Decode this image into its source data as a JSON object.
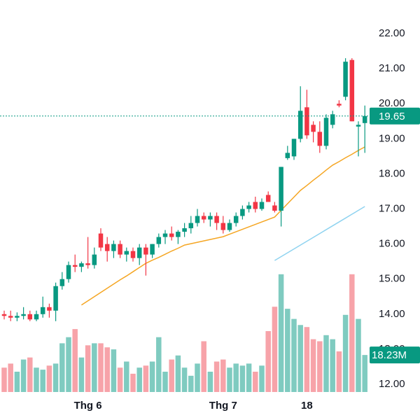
{
  "chart_data": {
    "type": "candlestick",
    "categories": [
      null,
      null,
      null,
      null,
      null,
      null,
      null,
      null,
      null,
      null,
      null,
      null,
      null,
      "Thg 6",
      null,
      null,
      null,
      null,
      null,
      null,
      null,
      null,
      null,
      null,
      null,
      null,
      null,
      null,
      null,
      null,
      null,
      null,
      null,
      null,
      "Thg 7",
      null,
      null,
      null,
      null,
      null,
      null,
      null,
      null,
      null,
      null,
      null,
      null,
      "18",
      null,
      null,
      null,
      null,
      null,
      null,
      null,
      null,
      null
    ],
    "candles": [
      {
        "open": 14.0,
        "high": 14.1,
        "low": 13.85,
        "close": 13.95
      },
      {
        "open": 13.95,
        "high": 14.1,
        "low": 13.8,
        "close": 13.9
      },
      {
        "open": 13.9,
        "high": 14.05,
        "low": 13.8,
        "close": 13.95
      },
      {
        "open": 13.95,
        "high": 14.2,
        "low": 13.85,
        "close": 14.0
      },
      {
        "open": 14.0,
        "high": 14.1,
        "low": 13.8,
        "close": 13.85
      },
      {
        "open": 13.85,
        "high": 14.1,
        "low": 13.8,
        "close": 14.0
      },
      {
        "open": 14.0,
        "high": 14.5,
        "low": 13.9,
        "close": 14.2
      },
      {
        "open": 14.2,
        "high": 14.3,
        "low": 13.9,
        "close": 14.1
      },
      {
        "open": 14.1,
        "high": 14.9,
        "low": 13.8,
        "close": 14.8
      },
      {
        "open": 14.8,
        "high": 15.2,
        "low": 14.7,
        "close": 15.0
      },
      {
        "open": 15.0,
        "high": 15.5,
        "low": 14.9,
        "close": 15.4
      },
      {
        "open": 15.4,
        "high": 15.7,
        "low": 15.2,
        "close": 15.35
      },
      {
        "open": 15.35,
        "high": 15.5,
        "low": 15.2,
        "close": 15.45
      },
      {
        "open": 15.45,
        "high": 16.2,
        "low": 15.3,
        "close": 15.4
      },
      {
        "open": 15.4,
        "high": 15.9,
        "low": 15.3,
        "close": 15.7
      },
      {
        "open": 16.3,
        "high": 16.45,
        "low": 15.8,
        "close": 15.9
      },
      {
        "open": 16.0,
        "high": 16.2,
        "low": 15.5,
        "close": 15.8
      },
      {
        "open": 15.8,
        "high": 16.1,
        "low": 15.6,
        "close": 16.0
      },
      {
        "open": 16.0,
        "high": 16.1,
        "low": 15.6,
        "close": 15.7
      },
      {
        "open": 15.7,
        "high": 15.9,
        "low": 15.5,
        "close": 15.8
      },
      {
        "open": 15.8,
        "high": 15.9,
        "low": 15.5,
        "close": 15.6
      },
      {
        "open": 15.6,
        "high": 16.0,
        "low": 15.4,
        "close": 15.9
      },
      {
        "open": 15.9,
        "high": 16.0,
        "low": 15.1,
        "close": 15.7
      },
      {
        "open": 15.7,
        "high": 16.0,
        "low": 15.6,
        "close": 16.0
      },
      {
        "open": 16.0,
        "high": 16.3,
        "low": 15.9,
        "close": 16.2
      },
      {
        "open": 16.2,
        "high": 16.4,
        "low": 16.0,
        "close": 16.3
      },
      {
        "open": 16.3,
        "high": 16.5,
        "low": 16.1,
        "close": 16.2
      },
      {
        "open": 16.2,
        "high": 16.4,
        "low": 16.0,
        "close": 16.35
      },
      {
        "open": 16.35,
        "high": 16.6,
        "low": 16.2,
        "close": 16.45
      },
      {
        "open": 16.45,
        "high": 16.8,
        "low": 16.3,
        "close": 16.6
      },
      {
        "open": 16.6,
        "high": 17.0,
        "low": 16.5,
        "close": 16.8
      },
      {
        "open": 16.8,
        "high": 16.9,
        "low": 16.6,
        "close": 16.7
      },
      {
        "open": 16.7,
        "high": 16.9,
        "low": 16.5,
        "close": 16.8
      },
      {
        "open": 16.8,
        "high": 16.9,
        "low": 16.4,
        "close": 16.6
      },
      {
        "open": 16.6,
        "high": 16.8,
        "low": 16.3,
        "close": 16.4
      },
      {
        "open": 16.4,
        "high": 16.7,
        "low": 16.35,
        "close": 16.6
      },
      {
        "open": 16.6,
        "high": 16.9,
        "low": 16.5,
        "close": 16.8
      },
      {
        "open": 16.8,
        "high": 17.1,
        "low": 16.7,
        "close": 17.0
      },
      {
        "open": 17.0,
        "high": 17.2,
        "low": 16.9,
        "close": 17.1
      },
      {
        "open": 17.2,
        "high": 17.35,
        "low": 16.9,
        "close": 17.0
      },
      {
        "open": 17.0,
        "high": 17.3,
        "low": 16.95,
        "close": 17.2
      },
      {
        "open": 17.4,
        "high": 17.5,
        "low": 17.2,
        "close": 17.2
      },
      {
        "open": 17.1,
        "high": 17.2,
        "low": 16.9,
        "close": 16.95
      },
      {
        "open": 16.95,
        "high": 18.2,
        "low": 16.5,
        "close": 18.2
      },
      {
        "open": 18.45,
        "high": 18.8,
        "low": 18.4,
        "close": 18.6
      },
      {
        "open": 18.5,
        "high": 19.0,
        "low": 18.4,
        "close": 19.0
      },
      {
        "open": 19.0,
        "high": 20.5,
        "low": 18.9,
        "close": 19.8
      },
      {
        "open": 19.9,
        "high": 20.4,
        "low": 19.0,
        "close": 19.1
      },
      {
        "open": 19.4,
        "high": 19.5,
        "low": 18.9,
        "close": 19.2
      },
      {
        "open": 19.2,
        "high": 19.5,
        "low": 18.6,
        "close": 18.8
      },
      {
        "open": 18.8,
        "high": 19.7,
        "low": 18.7,
        "close": 19.6
      },
      {
        "open": 19.4,
        "high": 19.8,
        "low": 19.3,
        "close": 19.7
      },
      {
        "open": 20.0,
        "high": 20.1,
        "low": 19.9,
        "close": 19.95
      },
      {
        "open": 20.2,
        "high": 21.3,
        "low": 20.1,
        "close": 21.2
      },
      {
        "open": 21.25,
        "high": 21.3,
        "low": 19.5,
        "close": 19.5
      },
      {
        "open": 19.35,
        "high": 19.5,
        "low": 18.5,
        "close": 19.4
      },
      {
        "open": 19.45,
        "high": 19.95,
        "low": 18.6,
        "close": 19.65
      }
    ],
    "volumes": [
      12,
      14,
      10,
      16,
      17,
      12,
      11,
      13,
      14,
      24,
      27,
      31,
      17,
      23,
      24,
      24,
      22,
      21,
      12,
      15,
      9,
      12,
      13,
      15,
      27,
      10,
      16,
      18,
      12,
      8,
      14,
      25,
      10,
      15,
      16,
      12,
      14,
      13,
      14,
      10,
      13,
      30,
      42,
      58,
      41,
      36,
      33,
      32,
      26,
      25,
      28,
      26,
      20,
      38,
      58,
      36,
      18.23
    ],
    "volume_last_label": "18.23M",
    "moving_averages": [
      {
        "color": "#f5a623",
        "values": [
          null,
          null,
          null,
          null,
          null,
          null,
          null,
          null,
          null,
          null,
          null,
          null,
          14.26,
          14.38,
          14.5,
          14.62,
          14.74,
          14.86,
          14.98,
          15.09,
          15.21,
          15.33,
          15.45,
          15.54,
          15.62,
          15.71,
          15.8,
          15.88,
          15.97,
          16.01,
          16.05,
          16.09,
          16.13,
          16.17,
          16.21,
          16.28,
          16.35,
          16.42,
          16.49,
          16.56,
          16.63,
          16.7,
          16.77,
          16.96,
          17.15,
          17.34,
          17.53,
          17.67,
          17.82,
          17.96,
          18.11,
          18.25,
          18.35,
          18.46,
          18.56,
          18.67,
          18.77
        ]
      },
      {
        "color": "#8fd3f0",
        "values": [
          null,
          null,
          null,
          null,
          null,
          null,
          null,
          null,
          null,
          null,
          null,
          null,
          null,
          null,
          null,
          null,
          null,
          null,
          null,
          null,
          null,
          null,
          null,
          null,
          null,
          null,
          null,
          null,
          null,
          null,
          null,
          null,
          null,
          null,
          null,
          null,
          null,
          null,
          null,
          null,
          null,
          null,
          15.53,
          15.64,
          15.75,
          15.86,
          15.97,
          16.08,
          16.19,
          16.3,
          16.41,
          16.52,
          16.63,
          16.74,
          16.85,
          16.96,
          17.07
        ]
      }
    ],
    "up_color": "#089981",
    "down_color": "#f23645",
    "volume_up_color": "#7fcbc0",
    "volume_down_color": "#f7a3a9",
    "ylim": [
      11.68,
      22.96
    ],
    "yticks": [
      {
        "value": 12,
        "label": "12.00"
      },
      {
        "value": 13,
        "label": "13.00"
      },
      {
        "value": 14,
        "label": "14.00"
      },
      {
        "value": 15,
        "label": "15.00"
      },
      {
        "value": 16,
        "label": "16.00"
      },
      {
        "value": 17,
        "label": "17.00"
      },
      {
        "value": 18,
        "label": "18.00"
      },
      {
        "value": 19,
        "label": "19.00"
      },
      {
        "value": 20,
        "label": "20.00"
      },
      {
        "value": 21,
        "label": "21.00"
      },
      {
        "value": 22,
        "label": "22.00"
      }
    ],
    "volume_lim": [
      0,
      60
    ]
  }
}
